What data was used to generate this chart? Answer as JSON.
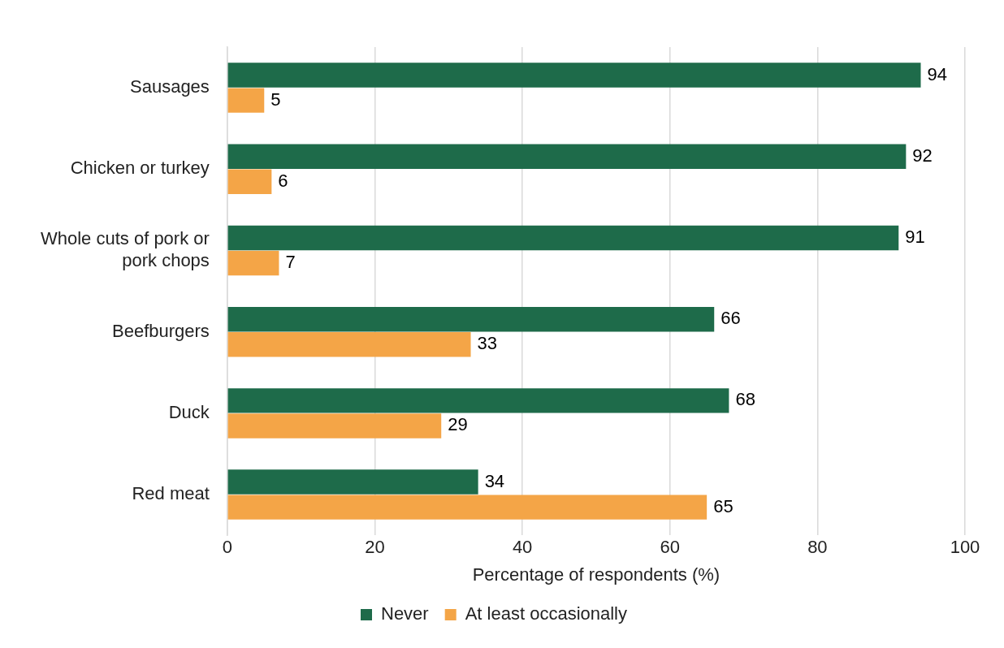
{
  "chart_data": {
    "type": "bar",
    "orientation": "horizontal",
    "xlabel": "Percentage of respondents (%)",
    "categories": [
      "Sausages",
      "Chicken or turkey",
      "Whole cuts of pork or pork chops",
      "Beefburgers",
      "Duck",
      "Red meat"
    ],
    "series": [
      {
        "name": "Never",
        "color": "#1e6b4a",
        "values": [
          94,
          92,
          91,
          66,
          68,
          34
        ]
      },
      {
        "name": "At least occasionally",
        "color": "#f4a547",
        "values": [
          5,
          6,
          7,
          33,
          29,
          65
        ]
      }
    ],
    "xlim": [
      0,
      100
    ],
    "xticks": [
      0,
      20,
      40,
      60,
      80,
      100
    ],
    "grid": "x",
    "legend": "bottom",
    "data_labels": true
  }
}
